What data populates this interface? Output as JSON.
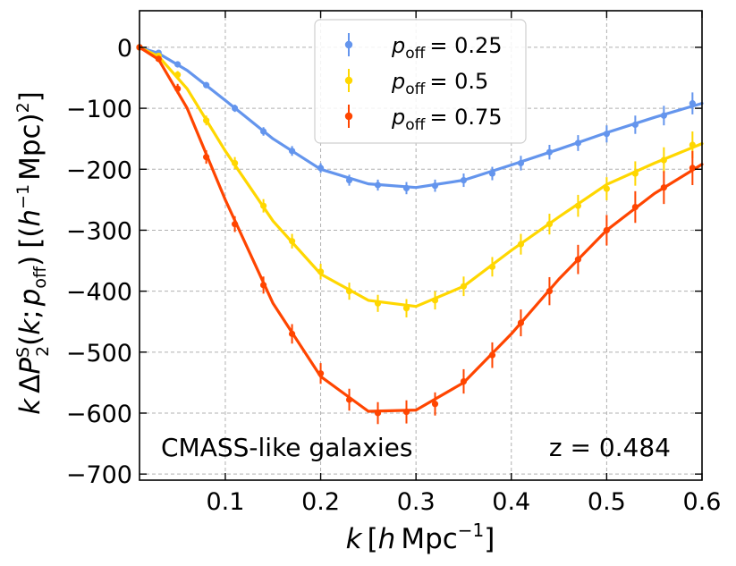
{
  "chart_data": {
    "type": "line",
    "xlabel": "k [h Mpc^-1]",
    "ylabel": "k ΔP2S(k; p_off) [(h^-1 Mpc)^2]",
    "xlim": [
      0.01,
      0.6
    ],
    "ylim": [
      -710,
      60
    ],
    "xticks": [
      0.1,
      0.2,
      0.3,
      0.4,
      0.5,
      0.6
    ],
    "xtick_labels": [
      "0.1",
      "0.2",
      "0.3",
      "0.4",
      "0.5",
      "0.6"
    ],
    "yticks": [
      0,
      -100,
      -200,
      -300,
      -400,
      -500,
      -600,
      -700
    ],
    "ytick_labels": [
      "0",
      "−100",
      "−200",
      "−300",
      "−400",
      "−500",
      "−600",
      "−700"
    ],
    "grid": true,
    "legend_position": "top-center",
    "series": [
      {
        "name": "p_off = 0.25",
        "legend_label": "p",
        "legend_sub": "off",
        "legend_value": "= 0.25",
        "color": "#6495ED",
        "curve": [
          [
            0.01,
            0
          ],
          [
            0.03,
            -10
          ],
          [
            0.06,
            -38
          ],
          [
            0.1,
            -87
          ],
          [
            0.15,
            -150
          ],
          [
            0.2,
            -200
          ],
          [
            0.25,
            -224
          ],
          [
            0.3,
            -230
          ],
          [
            0.35,
            -218
          ],
          [
            0.4,
            -193
          ],
          [
            0.45,
            -167
          ],
          [
            0.5,
            -140
          ],
          [
            0.55,
            -115
          ],
          [
            0.6,
            -92
          ]
        ],
        "points": [
          [
            0.01,
            0
          ],
          [
            0.03,
            -9
          ],
          [
            0.05,
            -28
          ],
          [
            0.08,
            -62
          ],
          [
            0.11,
            -100
          ],
          [
            0.14,
            -138
          ],
          [
            0.17,
            -170
          ],
          [
            0.2,
            -198
          ],
          [
            0.23,
            -218
          ],
          [
            0.26,
            -226
          ],
          [
            0.29,
            -231
          ],
          [
            0.32,
            -227
          ],
          [
            0.35,
            -218
          ],
          [
            0.38,
            -207
          ],
          [
            0.41,
            -190
          ],
          [
            0.44,
            -172
          ],
          [
            0.47,
            -157
          ],
          [
            0.5,
            -142
          ],
          [
            0.53,
            -127
          ],
          [
            0.56,
            -112
          ],
          [
            0.59,
            -92
          ]
        ],
        "err": [
          2,
          3,
          4,
          5,
          6,
          7,
          8,
          8,
          9,
          9,
          10,
          10,
          11,
          11,
          12,
          12,
          13,
          14,
          15,
          16,
          18
        ]
      },
      {
        "name": "p_off = 0.5",
        "legend_label": "p",
        "legend_sub": "off",
        "legend_value": "= 0.5",
        "color": "#FFD700",
        "curve": [
          [
            0.01,
            0
          ],
          [
            0.03,
            -15
          ],
          [
            0.06,
            -68
          ],
          [
            0.1,
            -170
          ],
          [
            0.15,
            -285
          ],
          [
            0.2,
            -372
          ],
          [
            0.25,
            -415
          ],
          [
            0.3,
            -425
          ],
          [
            0.35,
            -392
          ],
          [
            0.4,
            -333
          ],
          [
            0.45,
            -278
          ],
          [
            0.5,
            -225
          ],
          [
            0.55,
            -190
          ],
          [
            0.6,
            -158
          ]
        ],
        "points": [
          [
            0.01,
            0
          ],
          [
            0.03,
            -14
          ],
          [
            0.05,
            -45
          ],
          [
            0.08,
            -120
          ],
          [
            0.11,
            -190
          ],
          [
            0.14,
            -260
          ],
          [
            0.17,
            -318
          ],
          [
            0.2,
            -368
          ],
          [
            0.23,
            -400
          ],
          [
            0.26,
            -420
          ],
          [
            0.29,
            -428
          ],
          [
            0.32,
            -415
          ],
          [
            0.35,
            -392
          ],
          [
            0.38,
            -360
          ],
          [
            0.41,
            -323
          ],
          [
            0.44,
            -290
          ],
          [
            0.47,
            -260
          ],
          [
            0.5,
            -232
          ],
          [
            0.53,
            -207
          ],
          [
            0.56,
            -185
          ],
          [
            0.59,
            -160
          ]
        ],
        "err": [
          2,
          4,
          6,
          8,
          10,
          11,
          12,
          13,
          14,
          14,
          15,
          15,
          16,
          16,
          17,
          17,
          18,
          19,
          20,
          21,
          22
        ]
      },
      {
        "name": "p_off = 0.75",
        "legend_label": "p",
        "legend_sub": "off",
        "legend_value": "= 0.75",
        "color": "#FF4500",
        "curve": [
          [
            0.01,
            0
          ],
          [
            0.03,
            -20
          ],
          [
            0.06,
            -100
          ],
          [
            0.1,
            -250
          ],
          [
            0.15,
            -420
          ],
          [
            0.2,
            -540
          ],
          [
            0.25,
            -597
          ],
          [
            0.3,
            -595
          ],
          [
            0.35,
            -550
          ],
          [
            0.4,
            -470
          ],
          [
            0.45,
            -380
          ],
          [
            0.5,
            -300
          ],
          [
            0.55,
            -240
          ],
          [
            0.6,
            -192
          ]
        ],
        "points": [
          [
            0.01,
            0
          ],
          [
            0.03,
            -19
          ],
          [
            0.05,
            -68
          ],
          [
            0.08,
            -180
          ],
          [
            0.11,
            -290
          ],
          [
            0.14,
            -390
          ],
          [
            0.17,
            -470
          ],
          [
            0.2,
            -535
          ],
          [
            0.23,
            -578
          ],
          [
            0.26,
            -600
          ],
          [
            0.29,
            -598
          ],
          [
            0.32,
            -585
          ],
          [
            0.35,
            -548
          ],
          [
            0.38,
            -505
          ],
          [
            0.41,
            -452
          ],
          [
            0.44,
            -400
          ],
          [
            0.47,
            -348
          ],
          [
            0.5,
            -300
          ],
          [
            0.53,
            -262
          ],
          [
            0.56,
            -230
          ],
          [
            0.59,
            -198
          ]
        ],
        "err": [
          3,
          5,
          8,
          11,
          13,
          14,
          16,
          17,
          18,
          18,
          19,
          19,
          20,
          21,
          22,
          23,
          24,
          25,
          26,
          27,
          28
        ]
      }
    ],
    "annotations": {
      "left": "CMASS-like galaxies",
      "right": "z = 0.484"
    }
  }
}
